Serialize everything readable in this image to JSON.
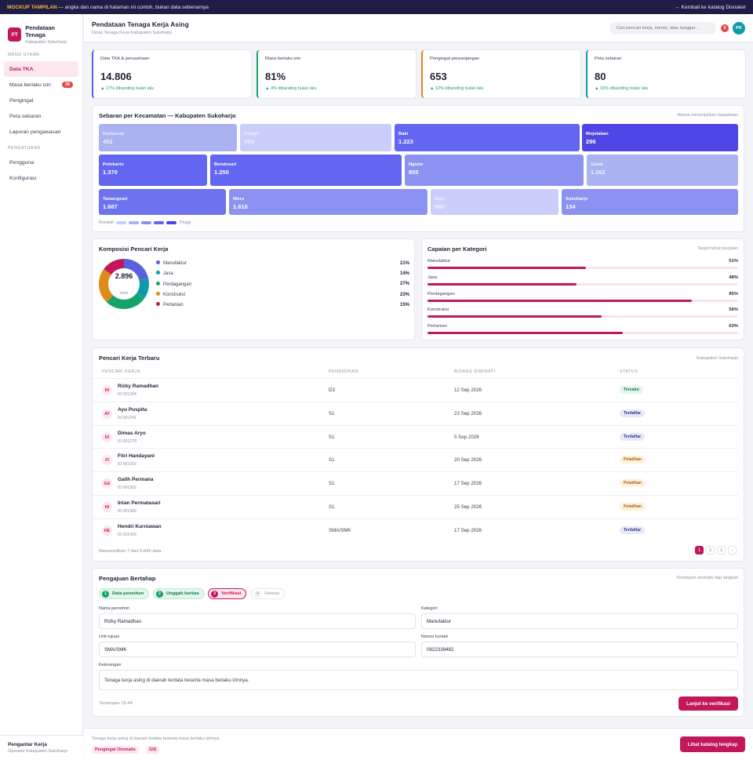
{
  "banner": {
    "tag": "MOCKUP TAMPILAN",
    "message": "— angka dan nama di halaman ini contoh, bukan data sebenarnya",
    "back": "← Kembali ke katalog Disnaker"
  },
  "brand": {
    "logo": "PT",
    "title": "Pendataan Tenaga",
    "subtitle": "Kabupaten Sukoharjo"
  },
  "nav": {
    "section_main": "MENU UTAMA",
    "section_settings": "PENGATURAN",
    "items": [
      {
        "label": "Data TKA"
      },
      {
        "label": "Masa berlaku izin",
        "badge": "38"
      },
      {
        "label": "Pengingat"
      },
      {
        "label": "Peta sebaran"
      },
      {
        "label": "Laporan pengawasan"
      }
    ],
    "settings": [
      {
        "label": "Pengguna"
      },
      {
        "label": "Konfigurasi"
      }
    ],
    "footer_title": "Pengantar Kerja",
    "footer_sub": "Operator Kabupaten Sukoharjo"
  },
  "header": {
    "title": "Pendataan Tenaga Kerja Asing",
    "subtitle": "Dinas Tenaga Kerja Kabupaten Sukoharjo",
    "search_placeholder": "Cari pencari kerja, nomor, atau tanggal...",
    "notif_count": "5",
    "avatar": "PK"
  },
  "kpis": [
    {
      "label": "Data TKA & perusahaan",
      "value": "14.806",
      "delta": "▲ 17% dibanding bulan lalu",
      "color": "#5b5fe0"
    },
    {
      "label": "Masa berlaku izin",
      "value": "81%",
      "delta": "▲ 4% dibanding bulan lalu",
      "color": "#15a36a"
    },
    {
      "label": "Pengingat perpanjangan",
      "value": "653",
      "delta": "▲ 12% dibanding bulan lalu",
      "color": "#e08a1a"
    },
    {
      "label": "Peta sebaran",
      "value": "80",
      "delta": "▲ 15% dibanding bulan lalu",
      "color": "#0e9aa7"
    }
  ],
  "map": {
    "title": "Sebaran per Kecamatan — Kabupaten Sukoharjo",
    "hint": "Warna menunjukkan kepadatan",
    "tiles": [
      {
        "name": "Kartasura",
        "value": "452",
        "color": "#aab2f2"
      },
      {
        "name": "Grogol",
        "value": "354",
        "color": "#c9cffa"
      },
      {
        "name": "Baki",
        "value": "1.223",
        "color": "#6366f1"
      },
      {
        "name": "Mojolaban",
        "value": "296",
        "color": "#4f46e5"
      },
      {
        "name": "Polokarto",
        "value": "1.370",
        "color": "#6366f1"
      },
      {
        "name": "Bendosari",
        "value": "1.250",
        "color": "#6366f1"
      },
      {
        "name": "Nguter",
        "value": "805",
        "color": "#8b92f2"
      },
      {
        "name": "Gatak",
        "value": "1.262",
        "color": "#aab2f2"
      },
      {
        "name": "Tawangsari",
        "value": "1.687",
        "color": "#6d72ee"
      },
      {
        "name": "Weru",
        "value": "1.616",
        "color": "#8b92f2"
      },
      {
        "name": "Bulu",
        "value": "980",
        "color": "#c9cffa"
      },
      {
        "name": "Sukoharjo",
        "value": "134",
        "color": "#8b92f2"
      }
    ],
    "legend_low": "Rendah",
    "legend_high": "Tinggi",
    "legend_colors": [
      "#c9cffa",
      "#aab2f2",
      "#8b92f2",
      "#6366f1",
      "#4f46e5"
    ]
  },
  "composition": {
    "title": "Komposisi Pencari Kerja",
    "total": "2.896",
    "total_label": "total",
    "items": [
      {
        "label": "Manufaktur",
        "pct": "21%",
        "value": 21,
        "color": "#5b5fe0"
      },
      {
        "label": "Jasa",
        "pct": "14%",
        "value": 14,
        "color": "#0e9aa7"
      },
      {
        "label": "Perdagangan",
        "pct": "27%",
        "value": 27,
        "color": "#15a36a"
      },
      {
        "label": "Konstruksi",
        "pct": "23%",
        "value": 23,
        "color": "#e08a1a"
      },
      {
        "label": "Pertanian",
        "pct": "15%",
        "value": 15,
        "color": "#c2185b"
      }
    ]
  },
  "achievement": {
    "title": "Capaian per Kategori",
    "hint": "Target tahun berjalan",
    "items": [
      {
        "label": "Manufaktur",
        "pct": "51%",
        "value": 51
      },
      {
        "label": "Jasa",
        "pct": "48%",
        "value": 48
      },
      {
        "label": "Perdagangan",
        "pct": "85%",
        "value": 85
      },
      {
        "label": "Konstruksi",
        "pct": "56%",
        "value": 56
      },
      {
        "label": "Pertanian",
        "pct": "63%",
        "value": 63
      }
    ]
  },
  "table": {
    "title": "Pencari Kerja Terbaru",
    "hint": "Kabupaten Sukoharjo",
    "columns": [
      "PENCARI KERJA",
      "PENDIDIKAN",
      "BIDANG DIMINATI",
      "STATUS"
    ],
    "rows": [
      {
        "initials": "RI",
        "name": "Rizky Ramadhan",
        "id": "ID 001204",
        "edu": "D3",
        "date": "12 Sep 2026",
        "status": "Tersalur",
        "kind": "green"
      },
      {
        "initials": "AY",
        "name": "Ayu Puspita",
        "id": "ID 001241",
        "edu": "S1",
        "date": "23 Sep 2026",
        "status": "Terdaftar",
        "kind": "blue"
      },
      {
        "initials": "DI",
        "name": "Dimas Aryo",
        "id": "ID 001278",
        "edu": "S1",
        "date": "5 Sep 2026",
        "status": "Terdaftar",
        "kind": "blue"
      },
      {
        "initials": "FI",
        "name": "Fitri Handayani",
        "id": "ID 001315",
        "edu": "S1",
        "date": "20 Sep 2026",
        "status": "Pelatihan",
        "kind": "amber"
      },
      {
        "initials": "GA",
        "name": "Galih Permana",
        "id": "ID 001352",
        "edu": "S1",
        "date": "17 Sep 2026",
        "status": "Pelatihan",
        "kind": "amber"
      },
      {
        "initials": "IN",
        "name": "Intan Permatasari",
        "id": "ID 001389",
        "edu": "S1",
        "date": "25 Sep 2026",
        "status": "Pelatihan",
        "kind": "amber"
      },
      {
        "initials": "HE",
        "name": "Hendri Kurniawan",
        "id": "ID 001426",
        "edu": "SMA/SMK",
        "date": "17 Sep 2026",
        "status": "Terdaftar",
        "kind": "blue"
      }
    ],
    "summary": "Menampilkan 7 dari 6.845 data",
    "pages": [
      "1",
      "2",
      "3",
      "›"
    ]
  },
  "form": {
    "title": "Pengajuan Bertahap",
    "hint": "Tersimpan otomatis tiap langkah",
    "steps": [
      {
        "num": "1",
        "label": "Data pemohon"
      },
      {
        "num": "2",
        "label": "Unggah berkas"
      },
      {
        "num": "3",
        "label": "Verifikasi"
      },
      {
        "num": "4",
        "label": "Selesai"
      }
    ],
    "fields": {
      "name_label": "Nama pemohon",
      "name_value": "Rizky Ramadhan",
      "category_label": "Kategori",
      "category_value": "Manufaktur",
      "unit_label": "Unit tujuan",
      "unit_value": "SMA/SMK",
      "contact_label": "Nomor kontak",
      "contact_value": "0822339482",
      "note_label": "Keterangan",
      "note_value": "Tenaga kerja asing di daerah terdata beserta masa berlaku izinnya."
    },
    "saved": "Tersimpan 15.44",
    "next": "Lanjut ke verifikasi"
  },
  "footer": {
    "text": "Tenaga kerja asing di daerah terdata beserta masa berlaku izinnya.",
    "chips": [
      "Pengingat Otomatis",
      "GIS"
    ],
    "cta": "Lihat katalog lengkap"
  }
}
